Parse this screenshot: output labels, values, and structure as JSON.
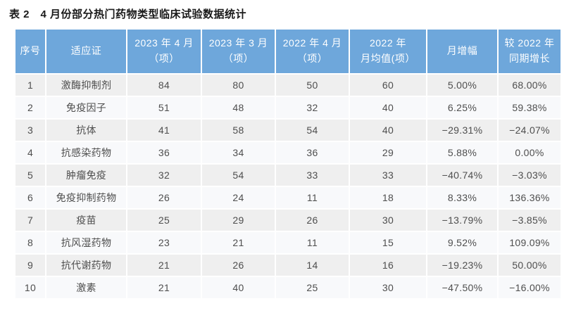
{
  "title": "表 2　4 月份部分热门药物类型临床试验数据统计",
  "colors": {
    "header_background": "#6ea7db",
    "header_text": "#ffffff",
    "row_odd_background": "#efefef",
    "row_even_background": "#f8f9fb",
    "body_text": "#4e4e4e",
    "title_text": "#1a1a1a",
    "grid_gap": "#ffffff"
  },
  "table": {
    "columns": [
      {
        "label": "序号"
      },
      {
        "label": "适应证"
      },
      {
        "label": "2023 年 4 月\n（项）"
      },
      {
        "label": "2023 年 3 月\n（项）"
      },
      {
        "label": "2022 年 4 月\n（项）"
      },
      {
        "label": "2022 年\n月均值(项）"
      },
      {
        "label": "月增幅"
      },
      {
        "label": "较 2022 年\n同期增长"
      }
    ],
    "rows": [
      [
        1,
        "激酶抑制剂",
        84,
        80,
        50,
        60,
        "5.00%",
        "68.00%"
      ],
      [
        2,
        "免疫因子",
        51,
        48,
        32,
        40,
        "6.25%",
        "59.38%"
      ],
      [
        3,
        "抗体",
        41,
        58,
        54,
        40,
        "−29.31%",
        "−24.07%"
      ],
      [
        4,
        "抗感染药物",
        36,
        34,
        36,
        29,
        "5.88%",
        "0.00%"
      ],
      [
        5,
        "肿瘤免疫",
        32,
        54,
        33,
        33,
        "−40.74%",
        "−3.03%"
      ],
      [
        6,
        "免疫抑制药物",
        26,
        24,
        11,
        18,
        "8.33%",
        "136.36%"
      ],
      [
        7,
        "疫苗",
        25,
        29,
        26,
        30,
        "−13.79%",
        "−3.85%"
      ],
      [
        8,
        "抗风湿药物",
        23,
        21,
        11,
        15,
        "9.52%",
        "109.09%"
      ],
      [
        9,
        "抗代谢药物",
        21,
        26,
        14,
        16,
        "−19.23%",
        "50.00%"
      ],
      [
        10,
        "激素",
        21,
        40,
        25,
        30,
        "−47.50%",
        "−16.00%"
      ]
    ]
  }
}
